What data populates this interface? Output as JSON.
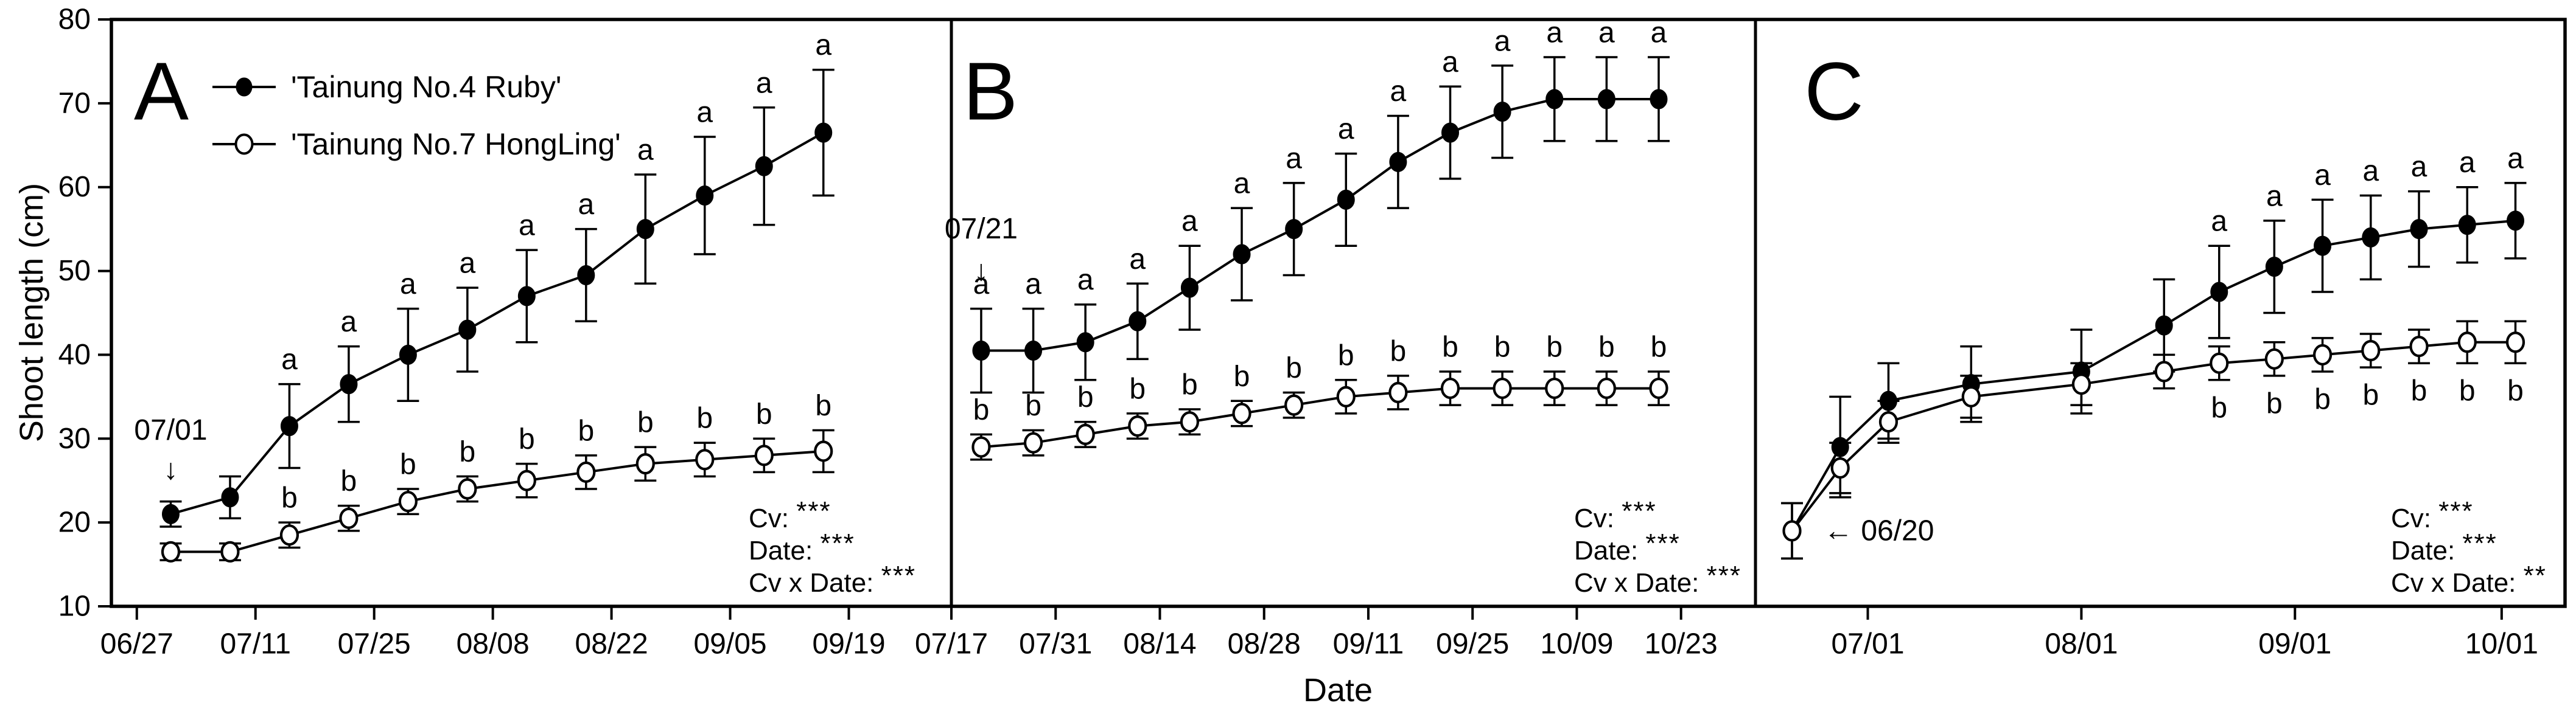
{
  "figure": {
    "y_axis_title": "Shoot length (cm)",
    "x_axis_title": "Date",
    "legend": [
      {
        "label": "'Tainung No.4 Ruby'",
        "marker": "filled-circle"
      },
      {
        "label": "'Tainung No.7 HongLing'",
        "marker": "open-circle"
      }
    ]
  },
  "chart_data": {
    "type": "line",
    "title": "",
    "ylabel": "Shoot length (cm)",
    "xlabel": "Date",
    "ylim": [
      10,
      80
    ],
    "yticks": [
      10,
      20,
      30,
      40,
      50,
      60,
      70,
      80
    ],
    "grid": "off",
    "legend_position": "top-left-panel-A",
    "colors": {
      "foreground": "#000000",
      "background": "#ffffff"
    },
    "series_names": [
      "'Tainung No.4 Ruby'",
      "'Tainung No.7 HongLing'"
    ],
    "panels": [
      {
        "label": "A",
        "xdomain_days": [
          -3,
          96.1
        ],
        "xticks": [
          {
            "day": 0,
            "label": "06/27"
          },
          {
            "day": 14,
            "label": "07/11"
          },
          {
            "day": 28,
            "label": "07/25"
          },
          {
            "day": 42,
            "label": "08/08"
          },
          {
            "day": 56,
            "label": "08/22"
          },
          {
            "day": 70,
            "label": "09/05"
          },
          {
            "day": 84,
            "label": "09/19"
          }
        ],
        "annotation": {
          "text": "07/01",
          "arrow": "down",
          "day": 4,
          "text_y": 31,
          "arrow_y": 26.3
        },
        "stats": [
          {
            "term": "Cv:",
            "sig": "***"
          },
          {
            "term": "Date:",
            "sig": "***"
          },
          {
            "term": "Cv x Date:",
            "sig": "***"
          }
        ],
        "series": [
          {
            "name": "'Tainung No.4 Ruby'",
            "marker": "filled",
            "days": [
              4,
              11,
              18,
              25,
              32,
              39,
              46,
              53,
              60,
              67,
              74,
              81
            ],
            "values": [
              21,
              23,
              31.5,
              36.5,
              40,
              43,
              47,
              49.5,
              55,
              59,
              62.5,
              66.5
            ],
            "errors": [
              1.5,
              2.5,
              5,
              4.5,
              5.5,
              5,
              5.5,
              5.5,
              6.5,
              7,
              7,
              7.5
            ],
            "letters": [
              "",
              "",
              "a",
              "a",
              "a",
              "a",
              "a",
              "a",
              "a",
              "a",
              "a",
              "a"
            ],
            "letter_side": "above"
          },
          {
            "name": "'Tainung No.7 HongLing'",
            "marker": "open",
            "days": [
              4,
              11,
              18,
              25,
              32,
              39,
              46,
              53,
              60,
              67,
              74,
              81
            ],
            "values": [
              16.5,
              16.5,
              18.5,
              20.5,
              22.5,
              24,
              25,
              26,
              27,
              27.5,
              28,
              28.5
            ],
            "errors": [
              1,
              1,
              1.5,
              1.5,
              1.5,
              1.5,
              2,
              2,
              2,
              2,
              2,
              2.5
            ],
            "letters": [
              "",
              "",
              "b",
              "b",
              "b",
              "b",
              "b",
              "b",
              "b",
              "b",
              "b",
              "b"
            ],
            "letter_side": "above"
          }
        ]
      },
      {
        "label": "B",
        "xdomain_days": [
          0,
          108
        ],
        "xticks": [
          {
            "day": 0,
            "label": "07/17"
          },
          {
            "day": 14,
            "label": "07/31"
          },
          {
            "day": 28,
            "label": "08/14"
          },
          {
            "day": 42,
            "label": "08/28"
          },
          {
            "day": 56,
            "label": "09/11"
          },
          {
            "day": 70,
            "label": "09/25"
          },
          {
            "day": 84,
            "label": "10/09"
          },
          {
            "day": 98,
            "label": "10/23"
          }
        ],
        "annotation": {
          "text": "07/21",
          "arrow": "down",
          "day": 4,
          "text_y": 55,
          "arrow_y": 50
        },
        "stats": [
          {
            "term": "Cv:",
            "sig": "***"
          },
          {
            "term": "Date:",
            "sig": "***"
          },
          {
            "term": "Cv x Date:",
            "sig": "***"
          }
        ],
        "series": [
          {
            "name": "'Tainung No.4 Ruby'",
            "marker": "filled",
            "days": [
              4,
              11,
              18,
              25,
              32,
              39,
              46,
              53,
              60,
              67,
              74,
              81,
              88,
              95
            ],
            "values": [
              40.5,
              40.5,
              41.5,
              44,
              48,
              52,
              55,
              58.5,
              63,
              66.5,
              69,
              70.5,
              70.5,
              70.5
            ],
            "errors": [
              5,
              5,
              4.5,
              4.5,
              5,
              5.5,
              5.5,
              5.5,
              5.5,
              5.5,
              5.5,
              5,
              5,
              5
            ],
            "letters": [
              "a",
              "a",
              "a",
              "a",
              "a",
              "a",
              "a",
              "a",
              "a",
              "a",
              "a",
              "a",
              "a",
              "a"
            ],
            "letter_side": "above"
          },
          {
            "name": "'Tainung No.7 HongLing'",
            "marker": "open",
            "days": [
              4,
              11,
              18,
              25,
              32,
              39,
              46,
              53,
              60,
              67,
              74,
              81,
              88,
              95
            ],
            "values": [
              29,
              29.5,
              30.5,
              31.5,
              32,
              33,
              34,
              35,
              35.5,
              36,
              36,
              36,
              36,
              36
            ],
            "errors": [
              1.5,
              1.5,
              1.5,
              1.5,
              1.5,
              1.5,
              1.5,
              2,
              2,
              2,
              2,
              2,
              2,
              2
            ],
            "letters": [
              "b",
              "b",
              "b",
              "b",
              "b",
              "b",
              "b",
              "b",
              "b",
              "b",
              "b",
              "b",
              "b",
              "b"
            ],
            "letter_side": "above"
          }
        ]
      },
      {
        "label": "C",
        "xdomain_days": [
          -16.3,
          101.2
        ],
        "xticks": [
          {
            "day": 0,
            "label": "07/01"
          },
          {
            "day": 31,
            "label": "08/01"
          },
          {
            "day": 62,
            "label": "09/01"
          },
          {
            "day": 92,
            "label": "10/01"
          }
        ],
        "annotation": {
          "text": "06/20",
          "arrow": "left",
          "day": -11,
          "text_y": 19,
          "arrow_y": 19
        },
        "stats": [
          {
            "term": "Cv:",
            "sig": "***"
          },
          {
            "term": "Date:",
            "sig": "***"
          },
          {
            "term": "Cv x Date:",
            "sig": "**"
          }
        ],
        "series": [
          {
            "name": "'Tainung No.4 Ruby'",
            "marker": "filled",
            "days": [
              -11,
              -4,
              3,
              15,
              31,
              43,
              51,
              59,
              66,
              73,
              80,
              87,
              94
            ],
            "values": [
              19,
              29,
              34.5,
              36.5,
              38,
              43.5,
              47.5,
              50.5,
              53,
              54,
              55,
              55.5,
              56
            ],
            "errors": [
              3.3,
              6,
              4.5,
              4.5,
              5,
              5.5,
              5.5,
              5.5,
              5.5,
              5,
              4.5,
              4.5,
              4.5
            ],
            "letters": [
              "",
              "",
              "",
              "",
              "",
              "",
              "a",
              "a",
              "a",
              "a",
              "a",
              "a",
              "a"
            ],
            "letter_side": "above"
          },
          {
            "name": "'Tainung No.7 HongLing'",
            "marker": "open",
            "days": [
              -11,
              -4,
              3,
              15,
              31,
              43,
              51,
              59,
              66,
              73,
              80,
              87,
              94
            ],
            "values": [
              19,
              26.5,
              32,
              35,
              36.5,
              38,
              39,
              39.5,
              40,
              40.5,
              41,
              41.5,
              41.5
            ],
            "errors": [
              3.3,
              3,
              2.5,
              2.5,
              2.5,
              2,
              2,
              2,
              2,
              2,
              2,
              2.5,
              2.5
            ],
            "letters": [
              "",
              "",
              "",
              "",
              "",
              "",
              "b",
              "b",
              "b",
              "b",
              "b",
              "b",
              "b"
            ],
            "letter_side": "below"
          }
        ]
      }
    ]
  }
}
